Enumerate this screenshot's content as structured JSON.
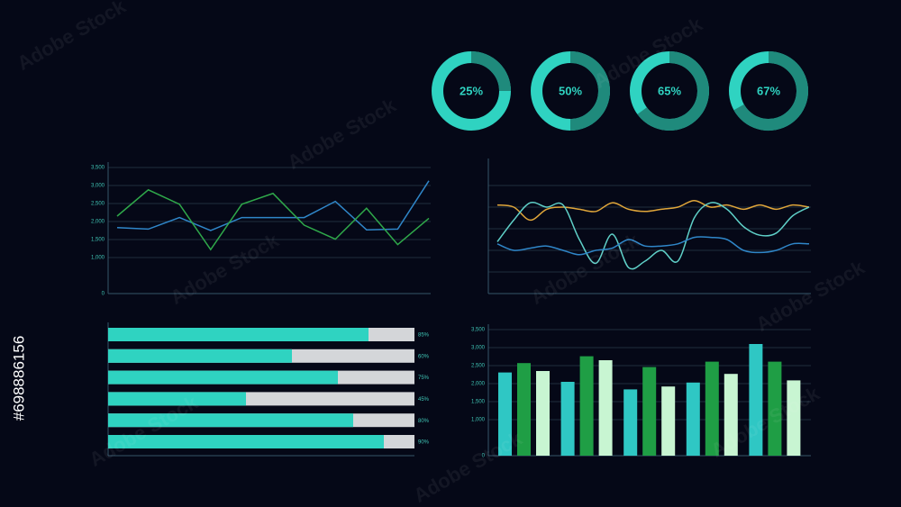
{
  "id_text": "#698886156",
  "watermark": "Adobe Stock",
  "chart_data": [
    {
      "type": "donut",
      "values": [
        25,
        50,
        65,
        67
      ],
      "value_labels": [
        "25%",
        "50%",
        "65%",
        "67%"
      ],
      "color": "#1f8a7c",
      "track_color": "#2fd3c1"
    },
    {
      "type": "line",
      "smooth": false,
      "categories": [
        null,
        null,
        null,
        null,
        null,
        null,
        null,
        null,
        null,
        null,
        null
      ],
      "series": [
        {
          "color": "#2f86c8",
          "values": [
            1830,
            1790,
            2110,
            1750,
            2110,
            2110,
            2110,
            2560,
            1770,
            1790,
            3130
          ]
        },
        {
          "color": "#2fa84a",
          "values": [
            2150,
            2880,
            2480,
            1220,
            2480,
            2780,
            1900,
            1510,
            2370,
            1360,
            2090
          ]
        }
      ],
      "ylim": [
        0,
        3500
      ],
      "yticks": [
        0,
        {
          "value": 1000,
          "label": "1,000"
        },
        {
          "value": 1500,
          "label": "1,500"
        },
        {
          "value": 2000,
          "label": "2,000"
        },
        {
          "value": 2500,
          "label": "2,500"
        },
        {
          "value": 3000,
          "label": "3,000"
        },
        {
          "value": 3500,
          "label": "3,500"
        }
      ],
      "grid": true
    },
    {
      "type": "line",
      "smooth": true,
      "tick_labels": false,
      "categories": [
        null,
        null,
        null,
        null,
        null,
        null,
        null,
        null,
        null,
        null,
        null,
        null,
        null,
        null,
        null,
        null,
        null,
        null,
        null,
        null
      ],
      "series": [
        {
          "color": "#e0a63a",
          "values": [
            82,
            80,
            68,
            78,
            80,
            78,
            76,
            84,
            78,
            76,
            78,
            80,
            86,
            80,
            82,
            78,
            82,
            78,
            82,
            80
          ]
        },
        {
          "color": "#5fd0c8",
          "values": [
            48,
            68,
            84,
            80,
            82,
            50,
            28,
            55,
            24,
            30,
            40,
            30,
            70,
            84,
            78,
            62,
            54,
            56,
            72,
            80
          ]
        },
        {
          "color": "#2f86c8",
          "values": [
            46,
            40,
            42,
            44,
            40,
            36,
            40,
            42,
            50,
            44,
            44,
            46,
            52,
            52,
            50,
            40,
            38,
            40,
            46,
            46
          ]
        }
      ],
      "ylim": [
        0,
        120
      ],
      "yticks": [
        0,
        20,
        40,
        60,
        80,
        100
      ],
      "grid": true
    },
    {
      "type": "progress",
      "values": [
        85,
        60,
        75,
        45,
        80,
        90
      ],
      "value_labels": [
        "85%",
        "60%",
        "75%",
        "45%",
        "80%",
        "90%"
      ],
      "xlim": [
        0,
        100
      ],
      "color": "#2fd3c1",
      "track_color": "#d4d6d9"
    },
    {
      "type": "bar",
      "categories": [
        null,
        null,
        null,
        null,
        null
      ],
      "series": [
        {
          "color": "#2fc7c4",
          "values": [
            2310,
            2050,
            1840,
            2030,
            3100
          ]
        },
        {
          "color": "#1f9e45",
          "values": [
            2570,
            2760,
            2460,
            2610,
            2610
          ]
        },
        {
          "color": "#c8f5d2",
          "values": [
            2350,
            2650,
            1920,
            2270,
            2090
          ]
        }
      ],
      "ylim": [
        0,
        3500
      ],
      "yticks": [
        0,
        {
          "value": 1000,
          "label": "1,000"
        },
        {
          "value": 1500,
          "label": "1,500"
        },
        {
          "value": 2000,
          "label": "2,000"
        },
        {
          "value": 2500,
          "label": "2,500"
        },
        {
          "value": 3000,
          "label": "3,000"
        },
        {
          "value": 3500,
          "label": "3,500"
        }
      ],
      "grid": true
    }
  ]
}
